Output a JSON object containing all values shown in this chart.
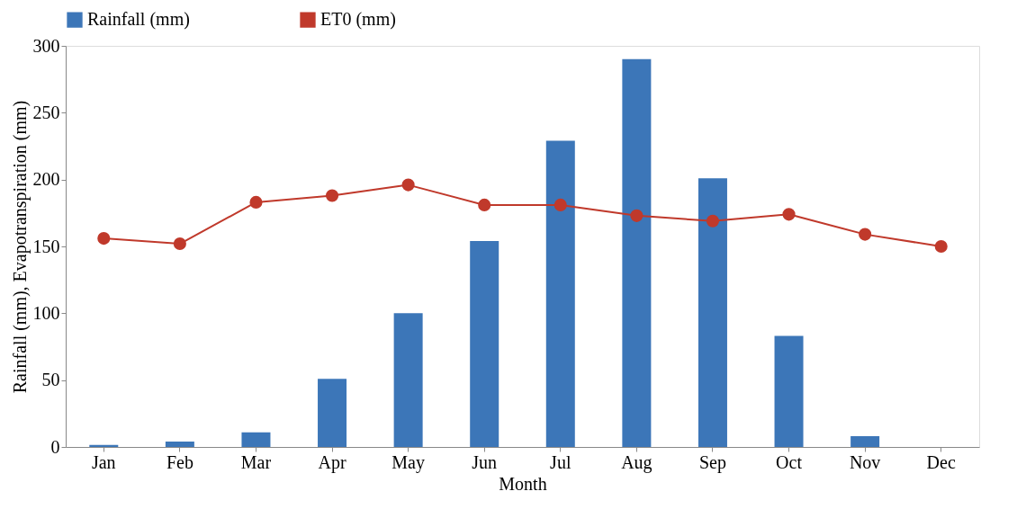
{
  "chart_data": {
    "type": "bar",
    "xlabel": "Month",
    "ylabel": "Rainfall (mm), Evapotranspiration (mm)",
    "categories": [
      "Jan",
      "Feb",
      "Mar",
      "Apr",
      "May",
      "Jun",
      "Jul",
      "Aug",
      "Sep",
      "Oct",
      "Nov",
      "Dec"
    ],
    "series": [
      {
        "name": "Rainfall (mm)",
        "color": "#3c76b8",
        "values": [
          1.5,
          4,
          11,
          51,
          100,
          154,
          229,
          290,
          201,
          83,
          8,
          0
        ]
      },
      {
        "name": "ET0 (mm)",
        "type": "line",
        "color": "#c0392b",
        "marker": "circle",
        "values": [
          156,
          152,
          183,
          188,
          196,
          181,
          181,
          173,
          169,
          174,
          159,
          150
        ]
      }
    ],
    "ylim": [
      0,
      300
    ],
    "yticks": [
      0,
      50,
      100,
      150,
      200,
      250,
      300
    ],
    "grid": false,
    "legend": "top"
  }
}
